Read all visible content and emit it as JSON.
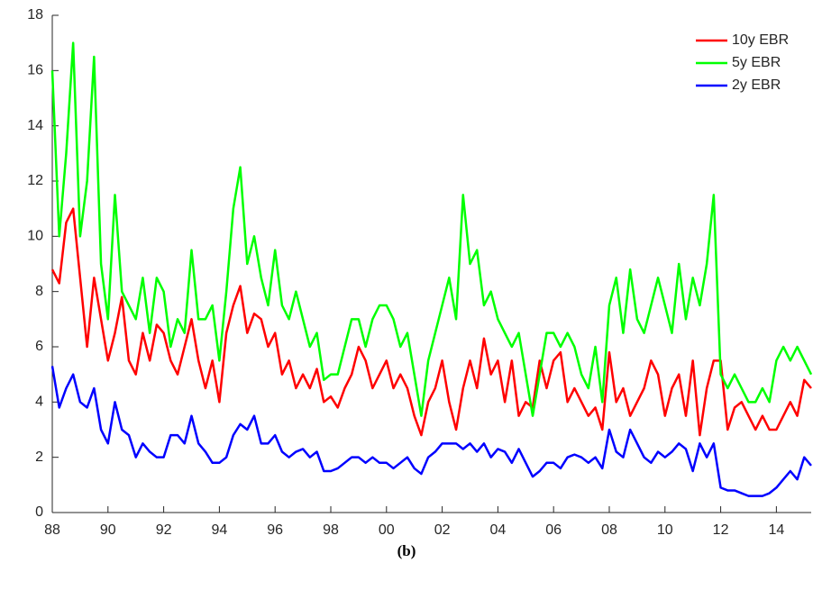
{
  "chart_data": {
    "type": "line",
    "caption": "(b)",
    "x": [
      1988,
      1988.25,
      1988.5,
      1988.75,
      1989,
      1989.25,
      1989.5,
      1989.75,
      1990,
      1990.25,
      1990.5,
      1990.75,
      1991,
      1991.25,
      1991.5,
      1991.75,
      1992,
      1992.25,
      1992.5,
      1992.75,
      1993,
      1993.25,
      1993.5,
      1993.75,
      1994,
      1994.25,
      1994.5,
      1994.75,
      1995,
      1995.25,
      1995.5,
      1995.75,
      1996,
      1996.25,
      1996.5,
      1996.75,
      1997,
      1997.25,
      1997.5,
      1997.75,
      1998,
      1998.25,
      1998.5,
      1998.75,
      1999,
      1999.25,
      1999.5,
      1999.75,
      2000,
      2000.25,
      2000.5,
      2000.75,
      2001,
      2001.25,
      2001.5,
      2001.75,
      2002,
      2002.25,
      2002.5,
      2002.75,
      2003,
      2003.25,
      2003.5,
      2003.75,
      2004,
      2004.25,
      2004.5,
      2004.75,
      2005,
      2005.25,
      2005.5,
      2005.75,
      2006,
      2006.25,
      2006.5,
      2006.75,
      2007,
      2007.25,
      2007.5,
      2007.75,
      2008,
      2008.25,
      2008.5,
      2008.75,
      2009,
      2009.25,
      2009.5,
      2009.75,
      2010,
      2010.25,
      2010.5,
      2010.75,
      2011,
      2011.25,
      2011.5,
      2011.75,
      2012,
      2012.25,
      2012.5,
      2012.75,
      2013,
      2013.25,
      2013.5,
      2013.75,
      2014,
      2014.25,
      2014.5,
      2014.75,
      2015,
      2015.25
    ],
    "series": [
      {
        "name": "10y EBR",
        "color": "#ff0000",
        "values": [
          8.8,
          8.3,
          10.5,
          11.0,
          8.5,
          6.0,
          8.5,
          7.0,
          5.5,
          6.5,
          7.8,
          5.5,
          5.0,
          6.5,
          5.5,
          6.8,
          6.5,
          5.5,
          5.0,
          6.0,
          7.0,
          5.5,
          4.5,
          5.5,
          4.0,
          6.5,
          7.5,
          8.2,
          6.5,
          7.2,
          7.0,
          6.0,
          6.5,
          5.0,
          5.5,
          4.5,
          5.0,
          4.5,
          5.2,
          4.0,
          4.2,
          3.8,
          4.5,
          5.0,
          6.0,
          5.5,
          4.5,
          5.0,
          5.5,
          4.5,
          5.0,
          4.5,
          3.5,
          2.8,
          4.0,
          4.5,
          5.5,
          4.0,
          3.0,
          4.5,
          5.5,
          4.5,
          6.3,
          5.0,
          5.5,
          4.0,
          5.5,
          3.5,
          4.0,
          3.8,
          5.5,
          4.5,
          5.5,
          5.8,
          4.0,
          4.5,
          4.0,
          3.5,
          3.8,
          3.0,
          5.8,
          4.0,
          4.5,
          3.5,
          4.0,
          4.5,
          5.5,
          5.0,
          3.5,
          4.5,
          5.0,
          3.5,
          5.5,
          2.8,
          4.5,
          5.5,
          5.5,
          3.0,
          3.8,
          4.0,
          3.5,
          3.0,
          3.5,
          3.0,
          3.0,
          3.5,
          4.0,
          3.5,
          4.8,
          4.5
        ]
      },
      {
        "name": "5y EBR",
        "color": "#00ff00",
        "values": [
          16.0,
          10.0,
          13.0,
          17.0,
          10.0,
          12.0,
          16.5,
          9.0,
          7.0,
          11.5,
          8.0,
          7.5,
          7.0,
          8.5,
          6.5,
          8.5,
          8.0,
          6.0,
          7.0,
          6.5,
          9.5,
          7.0,
          7.0,
          7.5,
          5.5,
          8.0,
          11.0,
          12.5,
          9.0,
          10.0,
          8.5,
          7.5,
          9.5,
          7.5,
          7.0,
          8.0,
          7.0,
          6.0,
          6.5,
          4.8,
          5.0,
          5.0,
          6.0,
          7.0,
          7.0,
          6.0,
          7.0,
          7.5,
          7.5,
          7.0,
          6.0,
          6.5,
          5.0,
          3.5,
          5.5,
          6.5,
          7.5,
          8.5,
          7.0,
          11.5,
          9.0,
          9.5,
          7.5,
          8.0,
          7.0,
          6.5,
          6.0,
          6.5,
          5.0,
          3.5,
          5.0,
          6.5,
          6.5,
          6.0,
          6.5,
          6.0,
          5.0,
          4.5,
          6.0,
          4.0,
          7.5,
          8.5,
          6.5,
          8.8,
          7.0,
          6.5,
          7.5,
          8.5,
          7.5,
          6.5,
          9.0,
          7.0,
          8.5,
          7.5,
          9.0,
          11.5,
          5.0,
          4.5,
          5.0,
          4.5,
          4.0,
          4.0,
          4.5,
          4.0,
          5.5,
          6.0,
          5.5,
          6.0,
          5.5,
          5.0
        ]
      },
      {
        "name": "2y EBR",
        "color": "#0000ff",
        "values": [
          5.3,
          3.8,
          4.5,
          5.0,
          4.0,
          3.8,
          4.5,
          3.0,
          2.5,
          4.0,
          3.0,
          2.8,
          2.0,
          2.5,
          2.2,
          2.0,
          2.0,
          2.8,
          2.8,
          2.5,
          3.5,
          2.5,
          2.2,
          1.8,
          1.8,
          2.0,
          2.8,
          3.2,
          3.0,
          3.5,
          2.5,
          2.5,
          2.8,
          2.2,
          2.0,
          2.2,
          2.3,
          2.0,
          2.2,
          1.5,
          1.5,
          1.6,
          1.8,
          2.0,
          2.0,
          1.8,
          2.0,
          1.8,
          1.8,
          1.6,
          1.8,
          2.0,
          1.6,
          1.4,
          2.0,
          2.2,
          2.5,
          2.5,
          2.5,
          2.3,
          2.5,
          2.2,
          2.5,
          2.0,
          2.3,
          2.2,
          1.8,
          2.3,
          1.8,
          1.3,
          1.5,
          1.8,
          1.8,
          1.6,
          2.0,
          2.1,
          2.0,
          1.8,
          2.0,
          1.6,
          3.0,
          2.2,
          2.0,
          3.0,
          2.5,
          2.0,
          1.8,
          2.2,
          2.0,
          2.2,
          2.5,
          2.3,
          1.5,
          2.5,
          2.0,
          2.5,
          0.9,
          0.8,
          0.8,
          0.7,
          0.6,
          0.6,
          0.6,
          0.7,
          0.9,
          1.2,
          1.5,
          1.2,
          2.0,
          1.7
        ]
      }
    ],
    "xlim": [
      1988,
      2015.25
    ],
    "xticks": [
      {
        "value": 1988,
        "label": "88"
      },
      {
        "value": 1990,
        "label": "90"
      },
      {
        "value": 1992,
        "label": "92"
      },
      {
        "value": 1994,
        "label": "94"
      },
      {
        "value": 1996,
        "label": "96"
      },
      {
        "value": 1998,
        "label": "98"
      },
      {
        "value": 2000,
        "label": "00"
      },
      {
        "value": 2002,
        "label": "02"
      },
      {
        "value": 2004,
        "label": "04"
      },
      {
        "value": 2006,
        "label": "06"
      },
      {
        "value": 2008,
        "label": "08"
      },
      {
        "value": 2010,
        "label": "10"
      },
      {
        "value": 2012,
        "label": "12"
      },
      {
        "value": 2014,
        "label": "14"
      }
    ],
    "ylim": [
      0,
      18
    ],
    "yticks": [
      0,
      2,
      4,
      6,
      8,
      10,
      12,
      14,
      16,
      18
    ],
    "grid": false,
    "legend": "upper right"
  }
}
